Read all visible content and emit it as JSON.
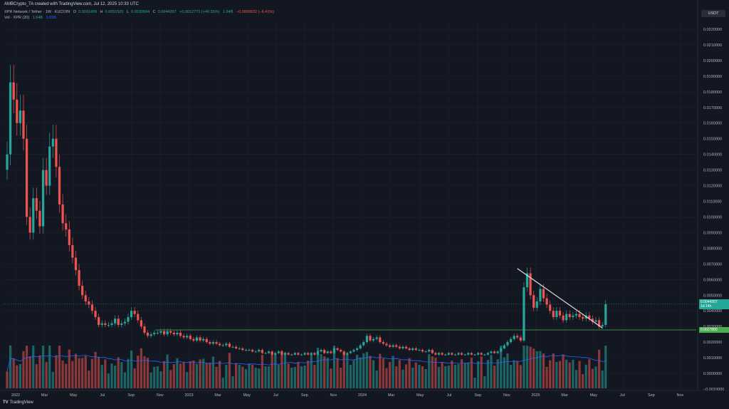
{
  "header": {
    "credit": "AMBCrypto_TA created with TradingView.com, Jul 12, 2025 10:33 UTC",
    "symbol": "XPR Network / Tether · 1W · KUCOIN",
    "ohlc": [
      {
        "label": "O",
        "value": "0.0031499"
      },
      {
        "label": "H",
        "value": "0.0051520"
      },
      {
        "label": "L",
        "value": "0.0030594"
      },
      {
        "label": "C",
        "value": "0.0044267"
      }
    ],
    "change": "+0.0012772 (+40.55%)",
    "vol_symbol": "Vol · XPR (20)",
    "vol_value_a": "1.64B",
    "vol_value_b": "1.65B",
    "extra_a": "1.64B",
    "extra_b": "−0.0000832 (−6.41%)"
  },
  "price_axis": {
    "currency": "USDT",
    "current_price": "0.0044267",
    "countdown": "1d 14h",
    "support_price": "0.0027800"
  },
  "footer": {
    "brand": "TradingView",
    "mark": "TV"
  },
  "colors": {
    "background": "#131722",
    "up": "#26a69a",
    "down": "#ef5350",
    "volume_ma": "#2962ff",
    "support_line": "#4caf50",
    "trendline": "#e0e0e0",
    "grid": "#1e222d"
  },
  "chart_data": {
    "type": "candlestick",
    "interval": "1W",
    "ylim": [
      -0.001,
      0.0225
    ],
    "y_ticks": [
      "0.0220000",
      "0.0210000",
      "0.0200000",
      "0.0190000",
      "0.0180000",
      "0.0170000",
      "0.0160000",
      "0.0150000",
      "0.0140000",
      "0.0130000",
      "0.0120000",
      "0.0110000",
      "0.0100000",
      "0.0090000",
      "0.0080000",
      "0.0070000",
      "0.0060000",
      "0.0050000",
      "0.0040000",
      "0.0030000",
      "0.0020000",
      "0.0010000",
      "0.0000000",
      "−0.0010000"
    ],
    "x_ticks": [
      "2022",
      "Mar",
      "May",
      "Jul",
      "Sep",
      "Nov",
      "2023",
      "Mar",
      "May",
      "Jul",
      "Sep",
      "Nov",
      "2024",
      "Mar",
      "May",
      "Jul",
      "Sep",
      "Nov",
      "2025",
      "Mar",
      "May",
      "Jul",
      "Sep",
      "Nov"
    ],
    "support_level": 0.00278,
    "trendline": {
      "from": {
        "week": "2025-01",
        "price": 0.0067
      },
      "to": {
        "week": "2025-07",
        "price": 0.0029
      }
    },
    "closes": [
      0.014,
      0.0186,
      0.0175,
      0.016,
      0.0168,
      0.015,
      0.01,
      0.009,
      0.0112,
      0.0104,
      0.0094,
      0.013,
      0.012,
      0.0145,
      0.015,
      0.0132,
      0.0108,
      0.0096,
      0.0092,
      0.0082,
      0.0074,
      0.0066,
      0.0056,
      0.005,
      0.0046,
      0.0044,
      0.004,
      0.0036,
      0.0031,
      0.0032,
      0.0031,
      0.0031,
      0.0032,
      0.0035,
      0.0031,
      0.0032,
      0.0033,
      0.0036,
      0.004,
      0.0038,
      0.0034,
      0.003,
      0.0026,
      0.0024,
      0.0025,
      0.0026,
      0.0026,
      0.0027,
      0.0025,
      0.0027,
      0.0026,
      0.0025,
      0.0026,
      0.0024,
      0.0023,
      0.0024,
      0.0022,
      0.0021,
      0.0023,
      0.0021,
      0.0022,
      0.002,
      0.0019,
      0.002,
      0.0019,
      0.0018,
      0.0018,
      0.0019,
      0.0017,
      0.0017,
      0.0016,
      0.0016,
      0.0015,
      0.0015,
      0.0015,
      0.0014,
      0.0014,
      0.0015,
      0.0013,
      0.0013,
      0.0014,
      0.0012,
      0.0013,
      0.0014,
      0.0012,
      0.0013,
      0.0012,
      0.0012,
      0.0013,
      0.0012,
      0.0012,
      0.0013,
      0.0012,
      0.0013,
      0.0012,
      0.0014,
      0.0015,
      0.0013,
      0.0014,
      0.0013,
      0.0016,
      0.0015,
      0.0014,
      0.0012,
      0.0013,
      0.0014,
      0.0015,
      0.0016,
      0.0018,
      0.002,
      0.0024,
      0.0021,
      0.0022,
      0.0023,
      0.002,
      0.0019,
      0.0018,
      0.0017,
      0.0018,
      0.0017,
      0.0016,
      0.0017,
      0.0016,
      0.0015,
      0.0016,
      0.0015,
      0.0015,
      0.0014,
      0.0014,
      0.0015,
      0.0013,
      0.0012,
      0.0013,
      0.0012,
      0.0012,
      0.0013,
      0.0012,
      0.0012,
      0.0013,
      0.0012,
      0.0012,
      0.0013,
      0.0012,
      0.0012,
      0.0013,
      0.0012,
      0.0012,
      0.0013,
      0.0014,
      0.0013,
      0.0014,
      0.0016,
      0.0018,
      0.002,
      0.0022,
      0.0024,
      0.0023,
      0.0021,
      0.0055,
      0.0064,
      0.005,
      0.0042,
      0.0046,
      0.0054,
      0.0048,
      0.0044,
      0.004,
      0.0036,
      0.004,
      0.0037,
      0.0034,
      0.0038,
      0.0036,
      0.0037,
      0.0038,
      0.0036,
      0.0035,
      0.0037,
      0.0035,
      0.0033,
      0.0034,
      0.003,
      0.0031,
      0.0044267
    ]
  }
}
